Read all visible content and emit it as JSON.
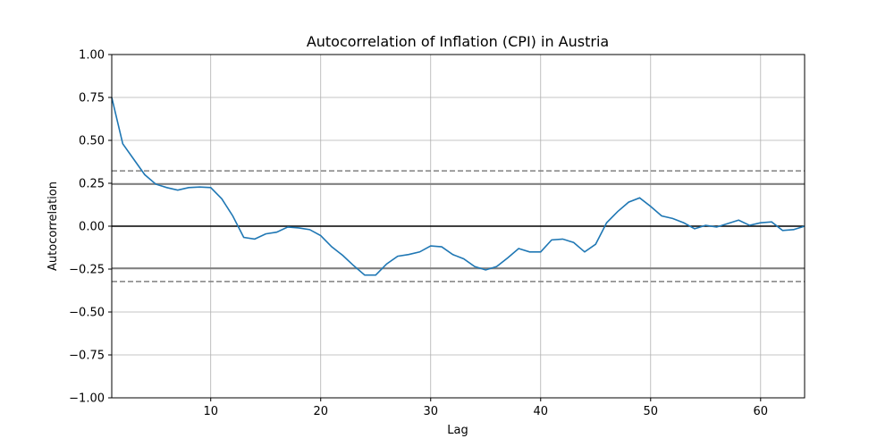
{
  "chart_data": {
    "type": "line",
    "title": "Autocorrelation of Inflation (CPI) in Austria",
    "xlabel": "Lag",
    "ylabel": "Autocorrelation",
    "xlim": [
      1,
      64
    ],
    "ylim": [
      -1.0,
      1.0
    ],
    "grid": true,
    "x_ticks": [
      10,
      20,
      30,
      40,
      50,
      60
    ],
    "y_ticks": [
      -1.0,
      -0.75,
      -0.5,
      -0.25,
      0.0,
      0.25,
      0.5,
      0.75,
      1.0
    ],
    "x_tick_labels": [
      "10",
      "20",
      "30",
      "40",
      "50",
      "60"
    ],
    "y_tick_labels": [
      "−1.00",
      "−0.75",
      "−0.50",
      "−0.25",
      "0.00",
      "0.25",
      "0.50",
      "0.75",
      "1.00"
    ],
    "line_color": "#1f77b4",
    "reference_lines": {
      "zero": {
        "value": 0.0,
        "color": "#000000",
        "style": "solid"
      },
      "ci95": {
        "values": [
          0.245,
          -0.245
        ],
        "color": "#808080",
        "style": "solid"
      },
      "ci99": {
        "values": [
          0.322,
          -0.322
        ],
        "color": "#808080",
        "style": "dashed"
      }
    },
    "x": [
      1,
      2,
      3,
      4,
      5,
      6,
      7,
      8,
      9,
      10,
      11,
      12,
      13,
      14,
      15,
      16,
      17,
      18,
      19,
      20,
      21,
      22,
      23,
      24,
      25,
      26,
      27,
      28,
      29,
      30,
      31,
      32,
      33,
      34,
      35,
      36,
      37,
      38,
      39,
      40,
      41,
      42,
      43,
      44,
      45,
      46,
      47,
      48,
      49,
      50,
      51,
      52,
      53,
      54,
      55,
      56,
      57,
      58,
      59,
      60,
      61,
      62,
      63,
      64
    ],
    "values": [
      0.75,
      0.48,
      0.39,
      0.3,
      0.245,
      0.225,
      0.21,
      0.225,
      0.228,
      0.225,
      0.16,
      0.06,
      -0.065,
      -0.075,
      -0.045,
      -0.035,
      -0.005,
      -0.01,
      -0.02,
      -0.055,
      -0.12,
      -0.17,
      -0.23,
      -0.285,
      -0.285,
      -0.22,
      -0.175,
      -0.165,
      -0.15,
      -0.115,
      -0.12,
      -0.165,
      -0.19,
      -0.235,
      -0.255,
      -0.235,
      -0.185,
      -0.13,
      -0.15,
      -0.15,
      -0.08,
      -0.075,
      -0.095,
      -0.15,
      -0.105,
      0.02,
      0.085,
      0.14,
      0.165,
      0.115,
      0.06,
      0.045,
      0.02,
      -0.015,
      0.005,
      -0.005,
      0.015,
      0.035,
      0.005,
      0.02,
      0.025,
      -0.025,
      -0.02,
      0.0
    ]
  }
}
